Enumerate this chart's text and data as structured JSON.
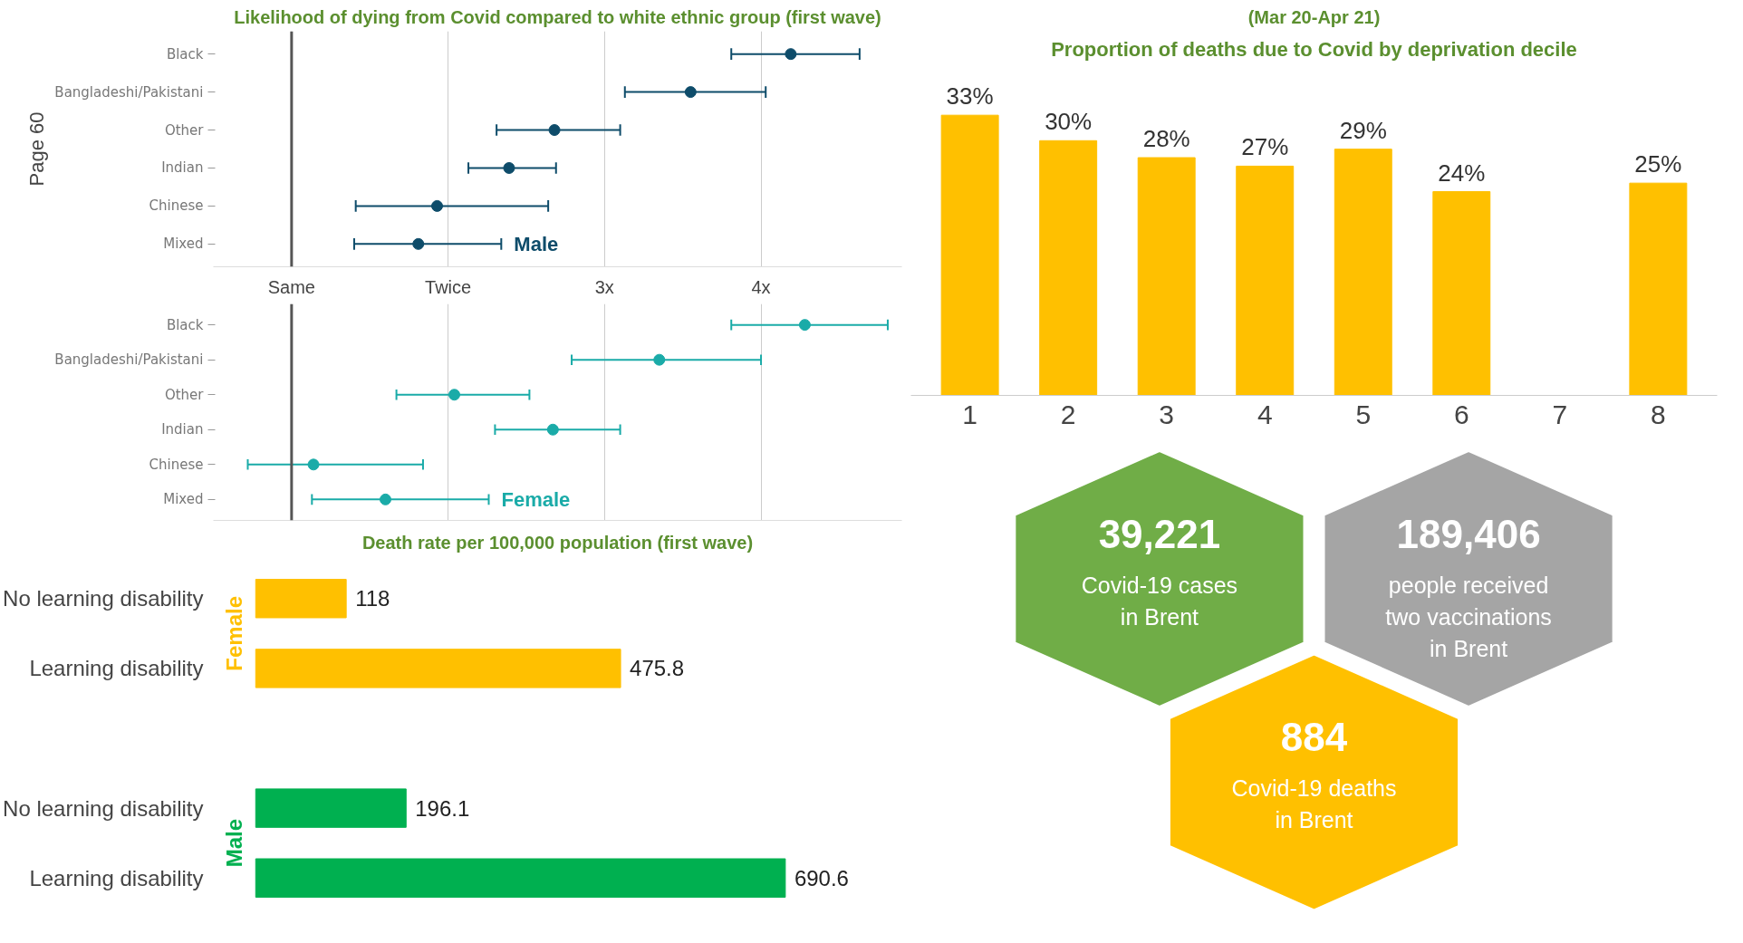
{
  "chart_data": [
    {
      "type": "scatter",
      "orientation": "horizontal",
      "title": "Likelihood of dying from Covid compared to white ethnic group (first wave)",
      "categories": [
        "Black",
        "Bangladeshi/Pakistani",
        "Other",
        "Indian",
        "Chinese",
        "Mixed"
      ],
      "series": [
        {
          "name": "Male",
          "color": "#0e4c6a",
          "values": [
            4.19,
            3.55,
            2.68,
            2.39,
            1.93,
            1.81
          ],
          "errors": [
            [
              3.81,
              4.63
            ],
            [
              3.13,
              4.03
            ],
            [
              2.31,
              3.1
            ],
            [
              2.13,
              2.69
            ],
            [
              1.41,
              2.64
            ],
            [
              1.4,
              2.34
            ]
          ]
        }
      ],
      "xlim": [
        0.5,
        4.9
      ],
      "xticks": [
        {
          "value": 1,
          "label": "Same"
        },
        {
          "value": 2,
          "label": "Twice"
        },
        {
          "value": 3,
          "label": "3x"
        },
        {
          "value": 4,
          "label": "4x"
        }
      ],
      "grid": "x",
      "marker": "circle",
      "ref_lines": [
        {
          "axis": "x",
          "value": 1,
          "color": "#555555"
        }
      ],
      "annotations": [
        "Page 60"
      ]
    },
    {
      "type": "scatter",
      "orientation": "horizontal",
      "categories": [
        "Black",
        "Bangladeshi/Pakistani",
        "Other",
        "Indian",
        "Chinese",
        "Mixed"
      ],
      "series": [
        {
          "name": "Female",
          "color": "#1aaba8",
          "values": [
            4.28,
            3.35,
            2.04,
            2.67,
            1.14,
            1.6
          ],
          "errors": [
            [
              3.81,
              4.81
            ],
            [
              2.79,
              4.0
            ],
            [
              1.67,
              2.52
            ],
            [
              2.3,
              3.1
            ],
            [
              0.72,
              1.84
            ],
            [
              1.13,
              2.26
            ]
          ]
        }
      ],
      "xlim": [
        0.5,
        4.9
      ],
      "xticks": [
        {
          "value": 1,
          "label": null
        },
        {
          "value": 2,
          "label": null
        },
        {
          "value": 3,
          "label": null
        },
        {
          "value": 4,
          "label": null
        }
      ],
      "grid": "x",
      "marker": "circle",
      "tick_labels": "y",
      "ref_lines": [
        {
          "axis": "x",
          "value": 1,
          "color": "#555555"
        }
      ]
    },
    {
      "type": "bar",
      "orientation": "horizontal",
      "title": "Death rate per 100,000 population (first wave)",
      "categories": [
        "No learning disability",
        "Learning disability",
        "No learning disability",
        "Learning disability"
      ],
      "series": [
        {
          "name": "Female",
          "color": "#ffc000",
          "values": [
            118,
            475.8,
            null,
            null
          ]
        },
        {
          "name": "Male",
          "color": "#00b050",
          "values": [
            null,
            null,
            196.1,
            690.6
          ]
        }
      ],
      "data_labels": true
    },
    {
      "type": "bar",
      "title": "Proportion of deaths due to Covid by deprivation decile",
      "subtitle": "(Mar 20-Apr 21)",
      "categories": [
        "1",
        "2",
        "3",
        "4",
        "5",
        "6",
        "7",
        "8"
      ],
      "values": [
        33,
        30,
        28,
        27,
        29,
        24,
        null,
        25
      ],
      "value_labels": [
        "33%",
        "30%",
        "28%",
        "27%",
        "29%",
        "24%",
        null,
        "25%"
      ],
      "color": "#ffc000"
    },
    {
      "type": "other",
      "categories": [
        "Covid-19 cases in Brent",
        "people received two vaccinations in Brent",
        "Covid-19 deaths in Brent"
      ],
      "values": [
        39221,
        189406,
        884
      ],
      "value_labels": [
        "39,221",
        "189,406",
        "884"
      ],
      "colors": [
        "#70ad47",
        "#a5a5a5",
        "#ffc000"
      ]
    }
  ]
}
